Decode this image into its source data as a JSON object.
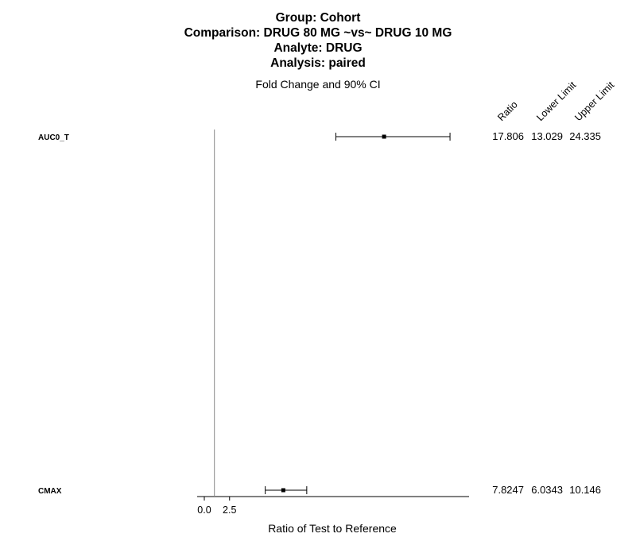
{
  "chart_data": {
    "type": "forest",
    "title_lines": [
      "Group: Cohort",
      "Comparison: DRUG 80 MG ~vs~ DRUG 10 MG",
      "Analyte: DRUG",
      "Analysis: paired"
    ],
    "subtitle": "Fold Change and 90% CI",
    "xlabel": "Ratio of Test to Reference",
    "x_ticks": [
      "0.0",
      "2.5"
    ],
    "x_tick_values": [
      0,
      2.5
    ],
    "reference_line": 1,
    "column_headers": [
      "Ratio",
      "Lower Limit",
      "Upper Limit"
    ],
    "rows": [
      {
        "label": "AUC0_T",
        "ratio": 17.806,
        "lower": 13.029,
        "upper": 24.335,
        "ratio_text": "17.806",
        "lower_text": "13.029",
        "upper_text": "24.335"
      },
      {
        "label": "CMAX",
        "ratio": 7.8247,
        "lower": 6.0343,
        "upper": 10.146,
        "ratio_text": "7.8247",
        "lower_text": "6.0343",
        "upper_text": "10.146"
      }
    ]
  }
}
